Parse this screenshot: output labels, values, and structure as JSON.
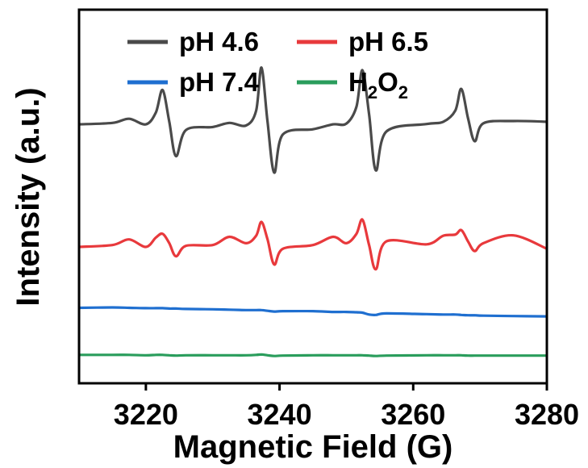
{
  "chart_data": {
    "type": "line",
    "xlabel": "Magnetic Field (G)",
    "ylabel": "Intensity (a.u.)",
    "xlim": [
      3210,
      3280
    ],
    "ylim": [
      0,
      100
    ],
    "x_ticks": [
      3220,
      3240,
      3260,
      3280
    ],
    "y_ticks_shown": false,
    "grid": false,
    "legend": {
      "placement": "top",
      "columns": 2
    },
    "x": [
      3210,
      3215,
      3217.5,
      3220,
      3221.5,
      3222.5,
      3223.5,
      3224.5,
      3226,
      3230,
      3232.5,
      3235,
      3236.5,
      3237.3,
      3238.2,
      3239.2,
      3240.5,
      3245,
      3248,
      3250,
      3251.5,
      3252.4,
      3253.4,
      3254.4,
      3256,
      3262,
      3264.5,
      3266.3,
      3267.2,
      3268.2,
      3269.2,
      3270.5,
      3275,
      3280
    ],
    "series": [
      {
        "name": "pH 4.6",
        "color": "#4a4a4a",
        "values": [
          69.3,
          69.7,
          70.8,
          69.3,
          72.5,
          78.5,
          70,
          60.8,
          67.8,
          68.6,
          69.7,
          69,
          73,
          84.5,
          70,
          56.4,
          66.6,
          68,
          69.3,
          69.5,
          74,
          83.8,
          72,
          57,
          67.4,
          69.4,
          70,
          73,
          78.8,
          71,
          64.8,
          69.6,
          70.2,
          70
        ]
      },
      {
        "name": "pH 6.5",
        "color": "#e8393c",
        "values": [
          36.5,
          37,
          38.5,
          36.5,
          39,
          40,
          37.5,
          34,
          36.8,
          37,
          39.2,
          37.5,
          39.5,
          43.2,
          38.5,
          31.8,
          36,
          37,
          39.2,
          37.5,
          40,
          43.8,
          37,
          30.5,
          38,
          37.2,
          39.5,
          39.8,
          41,
          38,
          35.4,
          37.5,
          39.6,
          36
        ]
      },
      {
        "name": "pH 7.4",
        "color": "#1f6fd0",
        "values": [
          20.2,
          20.3,
          20.2,
          20.1,
          20.1,
          20.1,
          20,
          20,
          19.9,
          19.8,
          19.7,
          19.6,
          19.6,
          19.6,
          19.4,
          19.2,
          19.3,
          19.3,
          19.1,
          19.1,
          19,
          18.9,
          18.4,
          18.3,
          18.7,
          18.5,
          18.4,
          18.4,
          18.3,
          18.2,
          18.2,
          18.1,
          18,
          17.9
        ]
      },
      {
        "name": "H2O2",
        "label_main": "H",
        "label_sub1": "2",
        "label_mid": "O",
        "label_sub2": "2",
        "color": "#2a9d5c",
        "values": [
          7.6,
          7.6,
          7.6,
          7.5,
          7.6,
          7.6,
          7.5,
          7.4,
          7.5,
          7.5,
          7.5,
          7.5,
          7.6,
          7.7,
          7.5,
          7.3,
          7.4,
          7.5,
          7.5,
          7.5,
          7.5,
          7.5,
          7.4,
          7.3,
          7.4,
          7.5,
          7.5,
          7.5,
          7.5,
          7.4,
          7.4,
          7.4,
          7.4,
          7.4
        ]
      }
    ]
  }
}
